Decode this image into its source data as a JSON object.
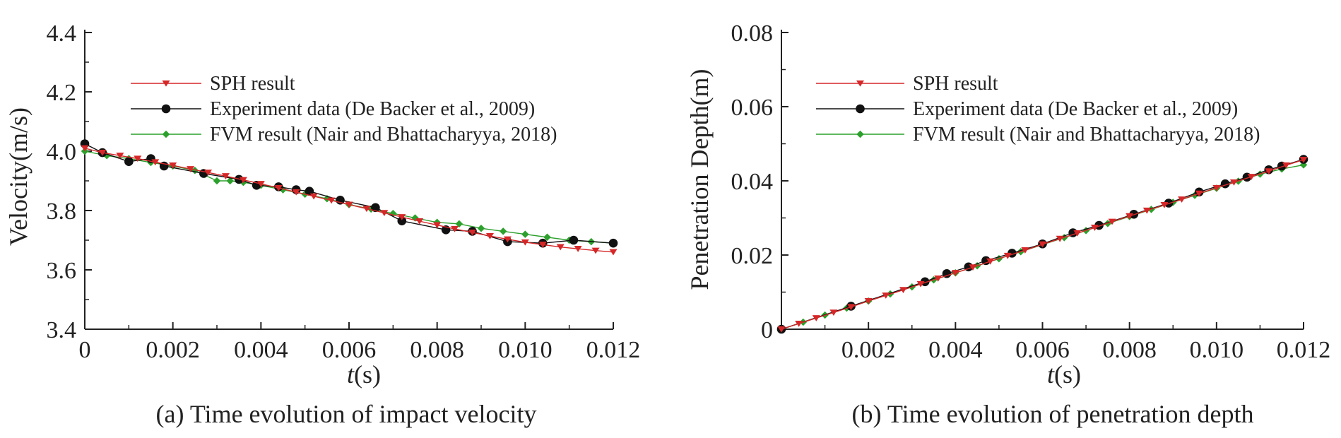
{
  "chart_data": [
    {
      "type": "line",
      "panel": "a",
      "caption": "(a) Time evolution of impact velocity",
      "xlabel_italic": "t",
      "xlabel_unit": "(s)",
      "ylabel": "Velocity(m/s)",
      "xlim": [
        0,
        0.012
      ],
      "ylim": [
        3.4,
        4.4
      ],
      "xticks": [
        0,
        0.002,
        0.004,
        0.006,
        0.008,
        0.01,
        0.012
      ],
      "xtick_labels": [
        "0",
        "0.002",
        "0.004",
        "0.006",
        "0.008",
        "0.010",
        "0.012"
      ],
      "yticks": [
        3.4,
        3.6,
        3.8,
        4.0,
        4.2,
        4.4
      ],
      "ytick_labels": [
        "3.4",
        "3.6",
        "3.8",
        "4.0",
        "4.2",
        "4.4"
      ],
      "legend_position": "top-center",
      "series": [
        {
          "name": "SPH result",
          "color": "#d62728",
          "marker": "triangle-down",
          "x": [
            0,
            0.0004,
            0.0008,
            0.0012,
            0.0016,
            0.002,
            0.0024,
            0.0028,
            0.0032,
            0.0036,
            0.004,
            0.0044,
            0.0048,
            0.0052,
            0.0056,
            0.006,
            0.0064,
            0.0068,
            0.0072,
            0.0076,
            0.008,
            0.0084,
            0.0088,
            0.0092,
            0.0096,
            0.01,
            0.0104,
            0.0108,
            0.0112,
            0.0116,
            0.012
          ],
          "y": [
            4.01,
            3.995,
            3.985,
            3.975,
            3.963,
            3.952,
            3.94,
            3.928,
            3.916,
            3.903,
            3.89,
            3.876,
            3.862,
            3.848,
            3.834,
            3.82,
            3.806,
            3.792,
            3.778,
            3.764,
            3.751,
            3.738,
            3.726,
            3.714,
            3.703,
            3.693,
            3.685,
            3.677,
            3.671,
            3.665,
            3.66
          ]
        },
        {
          "name": "Experiment data (De Backer et al., 2009)",
          "color": "#111111",
          "marker": "circle",
          "x": [
            0,
            0.0004,
            0.001,
            0.0015,
            0.0018,
            0.0027,
            0.0035,
            0.0039,
            0.0044,
            0.0048,
            0.0051,
            0.0058,
            0.0066,
            0.0072,
            0.0082,
            0.0088,
            0.0096,
            0.0104,
            0.0111,
            0.012
          ],
          "y": [
            4.025,
            3.995,
            3.965,
            3.975,
            3.95,
            3.925,
            3.905,
            3.885,
            3.88,
            3.87,
            3.865,
            3.835,
            3.81,
            3.765,
            3.735,
            3.73,
            3.695,
            3.69,
            3.7,
            3.69
          ]
        },
        {
          "name": "FVM result (Nair and Bhattacharyya, 2018)",
          "color": "#2ca02c",
          "marker": "diamond",
          "x": [
            0,
            0.0005,
            0.001,
            0.0015,
            0.002,
            0.0025,
            0.003,
            0.0033,
            0.0036,
            0.004,
            0.0045,
            0.005,
            0.0055,
            0.006,
            0.0065,
            0.007,
            0.0075,
            0.008,
            0.0085,
            0.009,
            0.0095,
            0.01,
            0.0105,
            0.011,
            0.0115,
            0.012
          ],
          "y": [
            4.0,
            3.985,
            3.975,
            3.962,
            3.95,
            3.935,
            3.9,
            3.9,
            3.895,
            3.885,
            3.87,
            3.855,
            3.84,
            3.82,
            3.805,
            3.79,
            3.775,
            3.76,
            3.755,
            3.74,
            3.73,
            3.72,
            3.71,
            3.7,
            3.695,
            3.69
          ]
        }
      ]
    },
    {
      "type": "line",
      "panel": "b",
      "caption": "(b) Time evolution of penetration depth",
      "xlabel_italic": "t",
      "xlabel_unit": "(s)",
      "ylabel": "Penetration Depth(m)",
      "xlim": [
        0,
        0.012
      ],
      "ylim": [
        0,
        0.08
      ],
      "xticks": [
        0.002,
        0.004,
        0.006,
        0.008,
        0.01,
        0.012
      ],
      "xtick_labels": [
        "0.002",
        "0.004",
        "0.006",
        "0.008",
        "0.010",
        "0.012"
      ],
      "yticks": [
        0,
        0.02,
        0.04,
        0.06,
        0.08
      ],
      "ytick_labels": [
        "0",
        "0.02",
        "0.04",
        "0.06",
        "0.08"
      ],
      "legend_position": "top-center",
      "series": [
        {
          "name": "SPH result",
          "color": "#d62728",
          "marker": "triangle-down",
          "x": [
            0,
            0.0004,
            0.0008,
            0.0012,
            0.0016,
            0.002,
            0.0024,
            0.0028,
            0.0032,
            0.0036,
            0.004,
            0.0044,
            0.0048,
            0.0052,
            0.0056,
            0.006,
            0.0064,
            0.0068,
            0.0072,
            0.0076,
            0.008,
            0.0084,
            0.0088,
            0.0092,
            0.0096,
            0.01,
            0.0104,
            0.0108,
            0.0112,
            0.0116,
            0.012
          ],
          "y": [
            0,
            0.0015,
            0.003,
            0.0045,
            0.006,
            0.0076,
            0.0091,
            0.0106,
            0.0122,
            0.0137,
            0.0152,
            0.0167,
            0.0183,
            0.0198,
            0.0213,
            0.0229,
            0.0244,
            0.0259,
            0.0274,
            0.029,
            0.0305,
            0.032,
            0.0335,
            0.035,
            0.0366,
            0.0381,
            0.0396,
            0.0411,
            0.0426,
            0.0442,
            0.0457
          ]
        },
        {
          "name": "Experiment data (De Backer et al., 2009)",
          "color": "#111111",
          "marker": "circle",
          "x": [
            0,
            0.0016,
            0.0033,
            0.0038,
            0.0043,
            0.0047,
            0.0053,
            0.006,
            0.0067,
            0.0073,
            0.0081,
            0.0089,
            0.0096,
            0.0102,
            0.0107,
            0.0112,
            0.0115,
            0.012
          ],
          "y": [
            0,
            0.0062,
            0.0128,
            0.015,
            0.0168,
            0.0185,
            0.0205,
            0.023,
            0.026,
            0.028,
            0.031,
            0.034,
            0.037,
            0.0392,
            0.041,
            0.043,
            0.044,
            0.0458
          ]
        },
        {
          "name": "FVM result (Nair and Bhattacharyya, 2018)",
          "color": "#2ca02c",
          "marker": "diamond",
          "x": [
            0,
            0.0005,
            0.001,
            0.0015,
            0.002,
            0.0025,
            0.003,
            0.0035,
            0.004,
            0.0045,
            0.005,
            0.0055,
            0.006,
            0.0065,
            0.007,
            0.0075,
            0.008,
            0.0085,
            0.009,
            0.0095,
            0.01,
            0.0105,
            0.011,
            0.0115,
            0.012
          ],
          "y": [
            0,
            0.0019,
            0.0038,
            0.0057,
            0.0076,
            0.0095,
            0.0114,
            0.0133,
            0.0152,
            0.0171,
            0.019,
            0.0209,
            0.0228,
            0.0247,
            0.0266,
            0.0285,
            0.0304,
            0.0323,
            0.0342,
            0.0361,
            0.038,
            0.0399,
            0.0418,
            0.0432,
            0.0443
          ]
        }
      ]
    }
  ]
}
